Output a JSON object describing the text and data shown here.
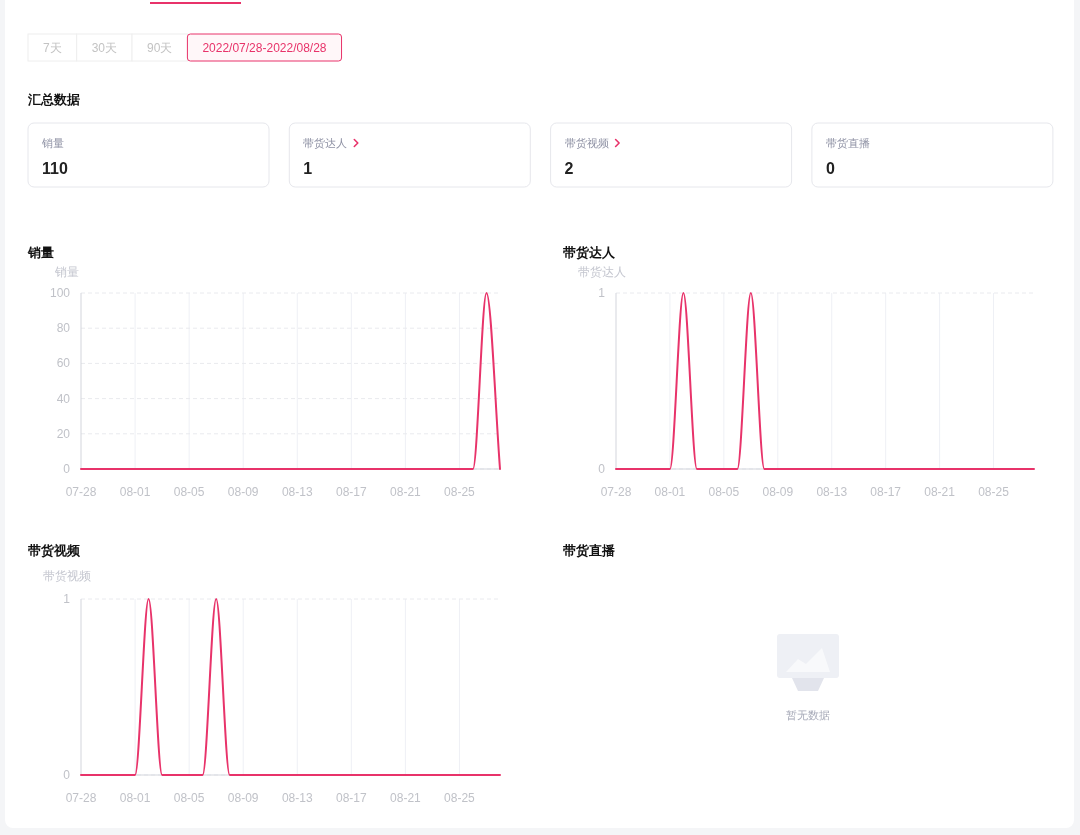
{
  "chart_data": [
    {
      "type": "other",
      "annotations": [
        "7天",
        "30天",
        "90天",
        "2022/07/28-2022/08/28"
      ]
    },
    {
      "type": "other",
      "title": "汇总数据",
      "categories": [
        "销量",
        "带货达人",
        "带货视频",
        "带货直播"
      ],
      "values": [
        110,
        1,
        2,
        0
      ],
      "data_labels": true
    },
    {
      "type": "line",
      "title": "销量",
      "ylabel": "销量",
      "categories": [
        "07-28",
        null,
        null,
        null,
        "08-01",
        null,
        null,
        null,
        "08-05",
        null,
        null,
        null,
        "08-09",
        null,
        null,
        null,
        "08-13",
        null,
        null,
        null,
        "08-17",
        null,
        null,
        null,
        "08-21",
        null,
        null,
        null,
        "08-25",
        null,
        null,
        null
      ],
      "values": [
        0,
        0,
        0,
        0,
        0,
        0,
        0,
        0,
        0,
        0,
        0,
        0,
        0,
        0,
        0,
        0,
        0,
        0,
        0,
        0,
        0,
        0,
        0,
        0,
        0,
        0,
        0,
        0,
        0,
        0,
        100,
        0
      ],
      "color": "#e8336a",
      "ylim": [
        0,
        100
      ],
      "yticks": [
        0,
        20,
        40,
        60,
        80,
        100
      ],
      "grid": true
    },
    {
      "type": "line",
      "title": "带货达人",
      "ylabel": "带货达人",
      "categories": [
        "07-28",
        null,
        null,
        null,
        "08-01",
        null,
        null,
        null,
        "08-05",
        null,
        null,
        null,
        "08-09",
        null,
        null,
        null,
        "08-13",
        null,
        null,
        null,
        "08-17",
        null,
        null,
        null,
        "08-21",
        null,
        null,
        null,
        "08-25",
        null,
        null,
        null
      ],
      "values": [
        0,
        0,
        0,
        0,
        0,
        1,
        0,
        0,
        0,
        0,
        1,
        0,
        0,
        0,
        0,
        0,
        0,
        0,
        0,
        0,
        0,
        0,
        0,
        0,
        0,
        0,
        0,
        0,
        0,
        0,
        0,
        0
      ],
      "color": "#e8336a",
      "ylim": [
        0,
        1
      ],
      "yticks": [
        0,
        1
      ],
      "grid": true
    },
    {
      "type": "line",
      "title": "带货视频",
      "ylabel": "带货视频",
      "categories": [
        "07-28",
        null,
        null,
        null,
        "08-01",
        null,
        null,
        null,
        "08-05",
        null,
        null,
        null,
        "08-09",
        null,
        null,
        null,
        "08-13",
        null,
        null,
        null,
        "08-17",
        null,
        null,
        null,
        "08-21",
        null,
        null,
        null,
        "08-25",
        null,
        null,
        null
      ],
      "values": [
        0,
        0,
        0,
        0,
        0,
        1,
        0,
        0,
        0,
        0,
        1,
        0,
        0,
        0,
        0,
        0,
        0,
        0,
        0,
        0,
        0,
        0,
        0,
        0,
        0,
        0,
        0,
        0,
        0,
        0,
        0,
        0
      ],
      "color": "#e8336a",
      "ylim": [
        0,
        1
      ],
      "yticks": [
        0,
        1
      ],
      "grid": true
    },
    {
      "type": "other",
      "title": "带货直播",
      "annotations": [
        "暂无数据"
      ]
    }
  ]
}
